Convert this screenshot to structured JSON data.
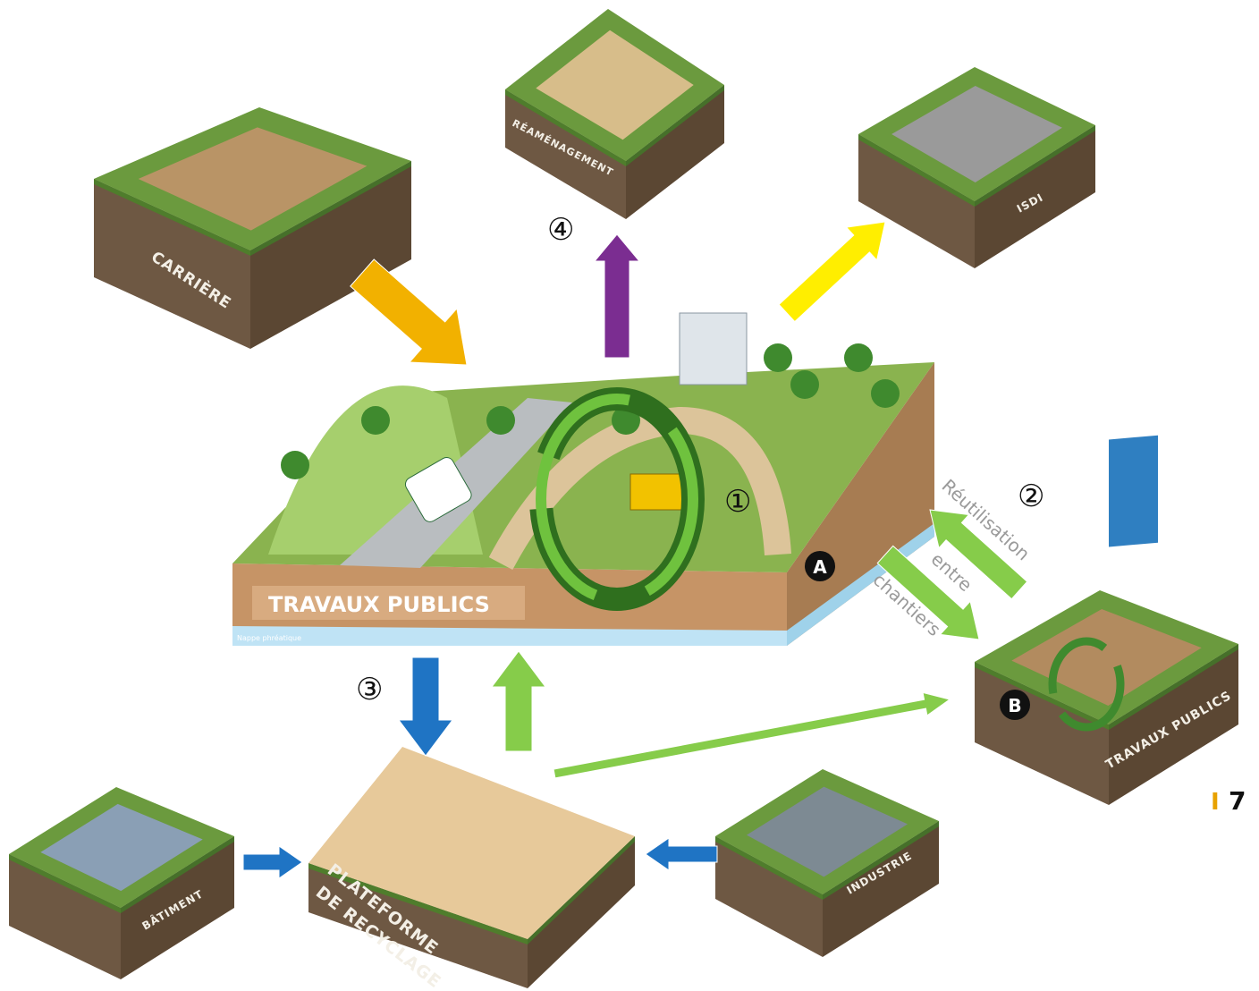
{
  "diagram": {
    "nodes": [
      {
        "label": "CARRIÈRE"
      },
      {
        "label": "RÉAMÉNAGEMENT"
      },
      {
        "label": "ISDI"
      },
      {
        "label": "TRAVAUX PUBLICS",
        "sublabel": "Nappe phréatique"
      },
      {
        "label": "TRAVAUX PUBLICS"
      },
      {
        "label": "BÂTIMENT"
      },
      {
        "label_lines": [
          "PLATEFORME",
          "DE RECYCLAGE"
        ]
      },
      {
        "label": "INDUSTRIE"
      }
    ],
    "steps": [
      "①",
      "②",
      "③",
      "④"
    ],
    "markers": [
      "A",
      "B"
    ],
    "reuse_label": [
      "Réutilisation",
      "entre",
      "chantiers"
    ]
  },
  "page": {
    "separator": "I",
    "number": "7"
  }
}
